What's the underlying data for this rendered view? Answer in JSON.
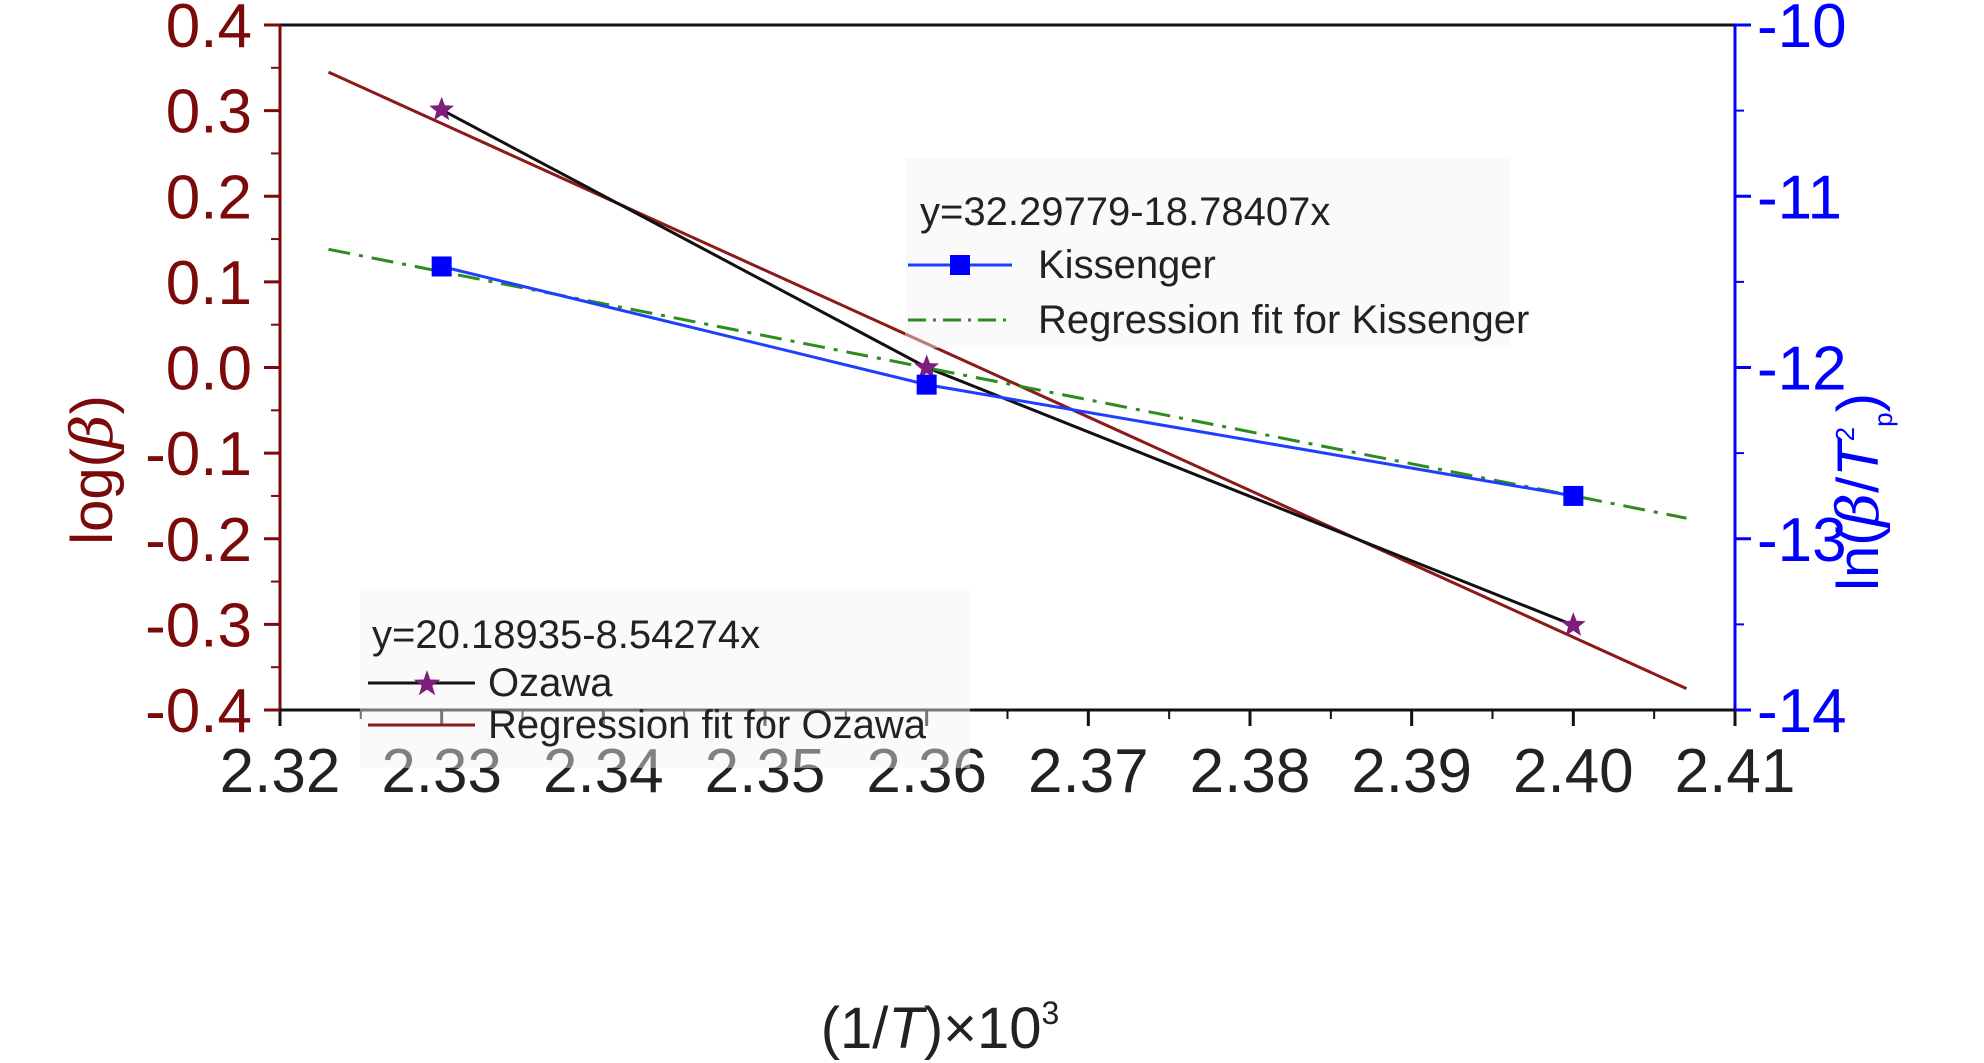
{
  "colors": {
    "left_axis": "#7b0a0a",
    "right_axis": "#0000ff",
    "bottom_axis": "#222222",
    "ozawa_line": "#111111",
    "ozawa_marker": "#7b1f7b",
    "ozawa_fit": "#8b1a1a",
    "kissenger_line": "#1f3fff",
    "kissenger_marker": "#0000ff",
    "kissenger_fit": "#2e8b1e"
  },
  "axes": {
    "x_label_parts": [
      "(1/",
      "T",
      ")×10",
      "3"
    ],
    "y_left_label_parts": [
      "log(",
      "β",
      ")"
    ],
    "y_right_label_parts": [
      "ln(",
      "β",
      "/",
      "T",
      "2",
      "p",
      ")"
    ],
    "x_ticks": [
      "2.32",
      "2.33",
      "2.34",
      "2.35",
      "2.36",
      "2.37",
      "2.38",
      "2.39",
      "2.40",
      "2.41"
    ],
    "y_left_ticks": [
      "0.4",
      "0.3",
      "0.2",
      "0.1",
      "0.0",
      "-0.1",
      "-0.2",
      "-0.3",
      "-0.4"
    ],
    "y_right_ticks": [
      "-10",
      "-11",
      "-12",
      "-13",
      "-14"
    ]
  },
  "legend_kissenger": {
    "equation": "y=32.29779-18.78407x",
    "series_label": "Kissenger",
    "fit_label": "Regression fit for Kissenger"
  },
  "legend_ozawa": {
    "equation": "y=20.18935-8.54274x",
    "series_label": "Ozawa",
    "fit_label": "Regression fit for Ozawa"
  },
  "chart_data": {
    "type": "line",
    "xlabel": "(1/T)×10^3",
    "ylabel_left": "log(β)",
    "ylabel_right": "ln(β/T²p)",
    "xlim": [
      2.32,
      2.41
    ],
    "ylim_left": [
      -0.4,
      0.4
    ],
    "ylim_right": [
      -14,
      -10
    ],
    "series": [
      {
        "name": "Ozawa",
        "axis": "left",
        "marker": "star",
        "x": [
          2.33,
          2.36,
          2.4
        ],
        "y": [
          0.301,
          0.0,
          -0.301
        ]
      },
      {
        "name": "Regression fit for Ozawa",
        "axis": "left",
        "style": "solid",
        "x": [
          2.323,
          2.407
        ],
        "y": [
          0.345,
          -0.375
        ]
      },
      {
        "name": "Kissenger",
        "axis": "right",
        "marker": "square",
        "x": [
          2.33,
          2.36,
          2.4
        ],
        "y": [
          -11.41,
          -12.1,
          -12.75
        ]
      },
      {
        "name": "Regression fit for Kissenger",
        "axis": "right",
        "style": "dashdot",
        "x": [
          2.323,
          2.407
        ],
        "y": [
          -11.31,
          -12.88
        ]
      }
    ]
  }
}
